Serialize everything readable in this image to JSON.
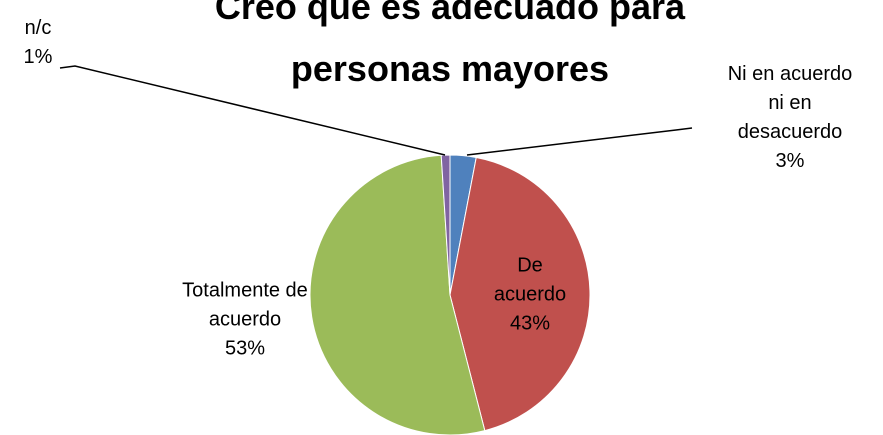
{
  "chart_data": {
    "type": "pie",
    "title": "Creo que es adecuado para personas mayores",
    "categories": [
      "Ni en acuerdo ni en desacuerdo",
      "De acuerdo",
      "Totalmente de acuerdo",
      "n/c"
    ],
    "values": [
      3,
      43,
      53,
      1
    ],
    "value_labels": [
      "3%",
      "43%",
      "53%",
      "1%"
    ],
    "colors": [
      "#4f81bd",
      "#c0504d",
      "#9bbb59",
      "#8064a2"
    ]
  }
}
